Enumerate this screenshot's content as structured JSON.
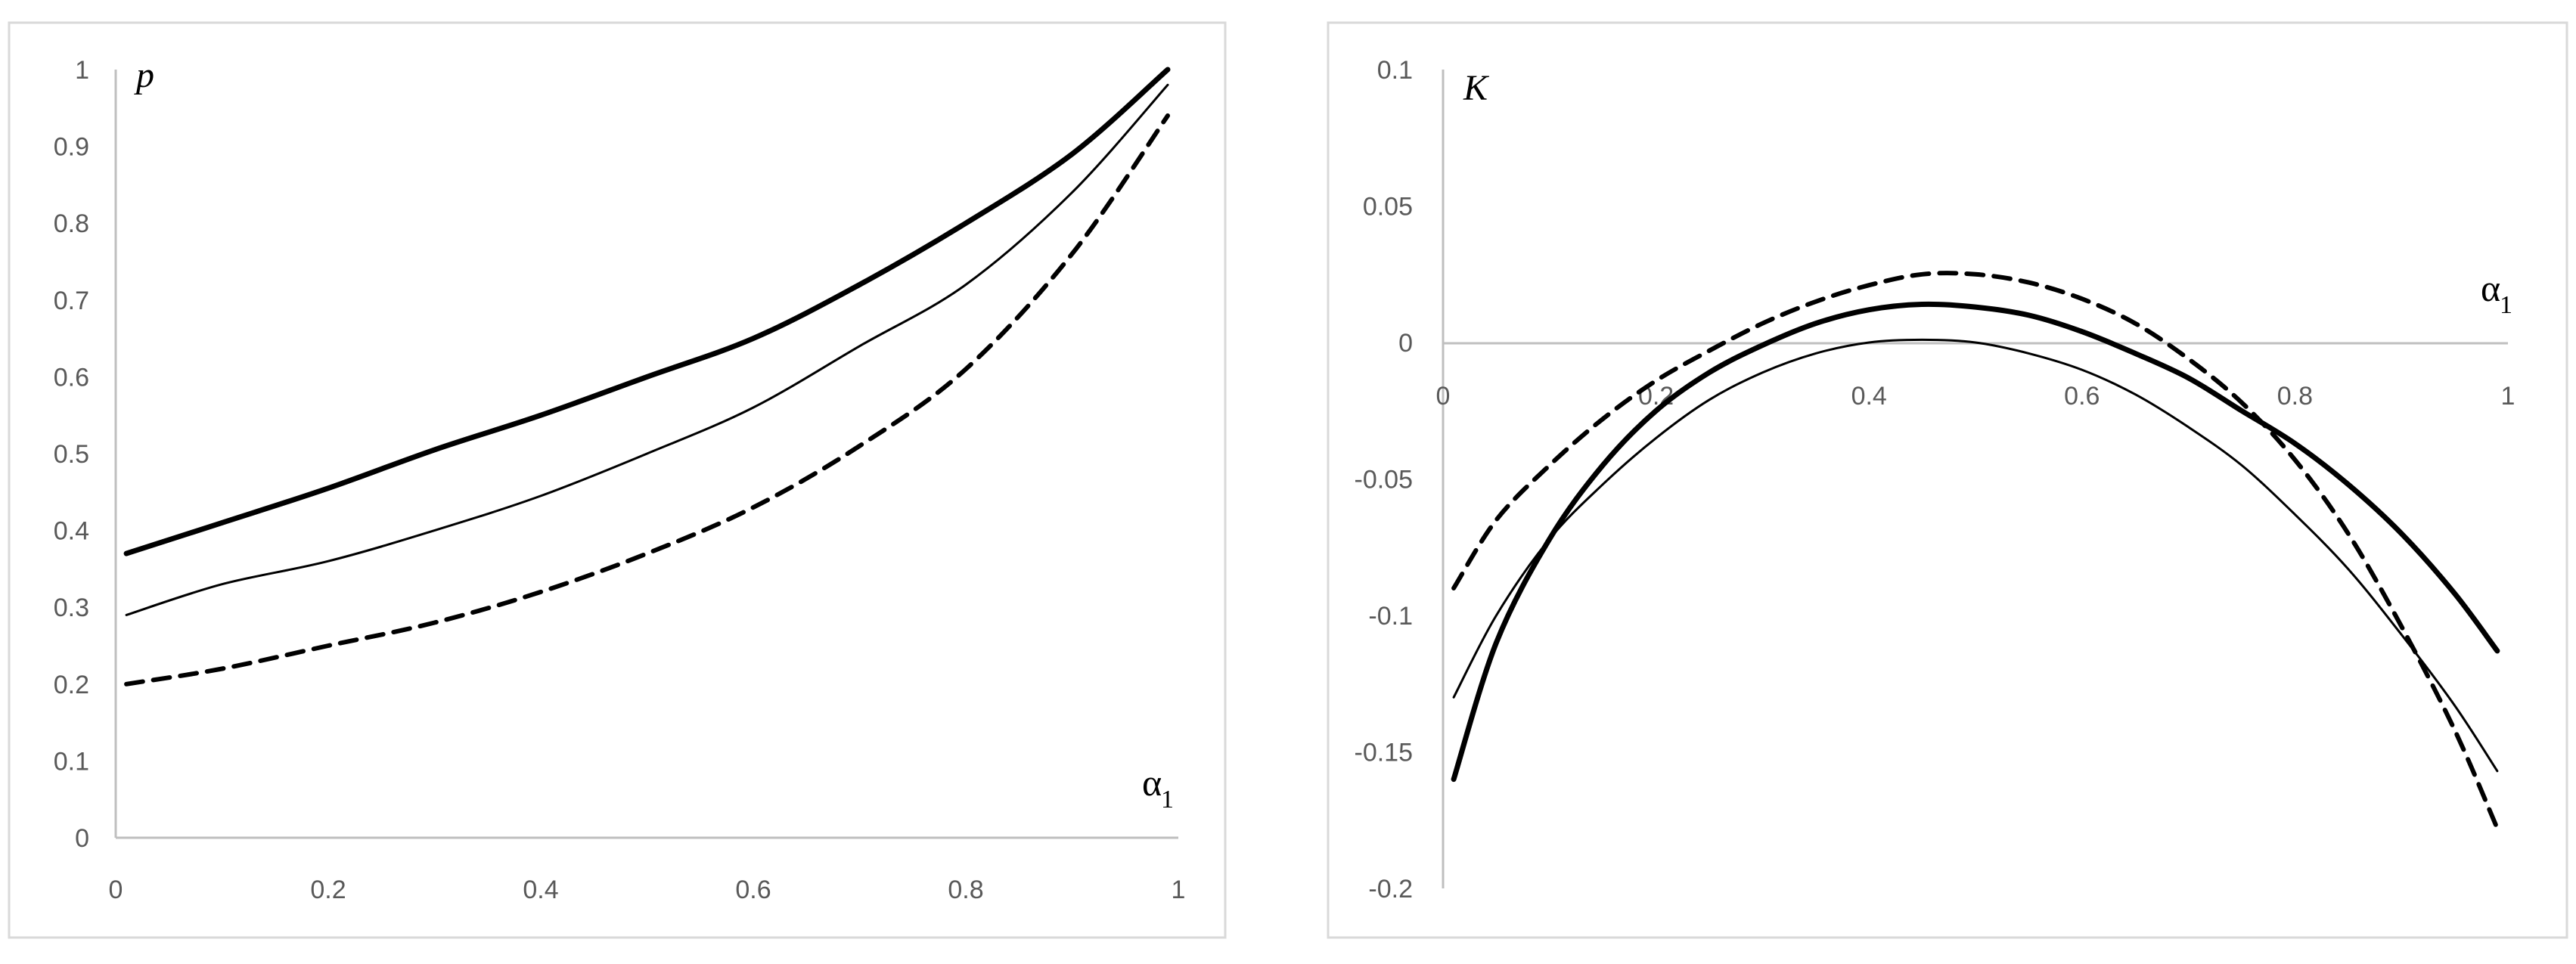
{
  "chart_data": [
    {
      "type": "line",
      "title": "",
      "ylabel": "p",
      "xlabel_main": "α",
      "xlabel_sub": "1",
      "xlim": [
        0,
        1
      ],
      "ylim": [
        0,
        1
      ],
      "xticks": [
        "0",
        "0.2",
        "0.4",
        "0.6",
        "0.8",
        "1"
      ],
      "yticks": [
        "0",
        "0.1",
        "0.2",
        "0.3",
        "0.4",
        "0.5",
        "0.6",
        "0.7",
        "0.8",
        "0.9",
        "1"
      ],
      "grid": false,
      "series": [
        {
          "style": "thick-solid",
          "x": [
            0.01,
            0.1,
            0.2,
            0.3,
            0.4,
            0.5,
            0.6,
            0.7,
            0.8,
            0.9,
            0.99
          ],
          "y": [
            0.37,
            0.41,
            0.455,
            0.505,
            0.55,
            0.6,
            0.65,
            0.72,
            0.8,
            0.89,
            1.0
          ]
        },
        {
          "style": "thin-solid",
          "x": [
            0.01,
            0.1,
            0.2,
            0.3,
            0.4,
            0.5,
            0.6,
            0.7,
            0.8,
            0.9,
            0.99
          ],
          "y": [
            0.29,
            0.33,
            0.36,
            0.4,
            0.445,
            0.5,
            0.56,
            0.64,
            0.72,
            0.84,
            0.98
          ]
        },
        {
          "style": "dashed",
          "x": [
            0.01,
            0.1,
            0.2,
            0.3,
            0.4,
            0.5,
            0.6,
            0.7,
            0.8,
            0.9,
            0.99
          ],
          "y": [
            0.2,
            0.22,
            0.25,
            0.28,
            0.32,
            0.37,
            0.43,
            0.51,
            0.61,
            0.76,
            0.94
          ]
        }
      ]
    },
    {
      "type": "line",
      "title": "",
      "ylabel": "K",
      "xlabel_main": "α",
      "xlabel_sub": "1",
      "xlim": [
        0,
        1
      ],
      "ylim": [
        -0.2,
        0.1
      ],
      "xticks": [
        "0",
        "0.2",
        "0.4",
        "0.6",
        "0.8",
        "1"
      ],
      "yticks": [
        "-0.2",
        "-0.15",
        "-0.1",
        "-0.05",
        "0",
        "0.05",
        "0.1"
      ],
      "grid": false,
      "series": [
        {
          "style": "thick-solid",
          "x": [
            0.01,
            0.05,
            0.1,
            0.15,
            0.2,
            0.25,
            0.3,
            0.35,
            0.4,
            0.45,
            0.5,
            0.55,
            0.6,
            0.65,
            0.7,
            0.75,
            0.8,
            0.85,
            0.9,
            0.95,
            0.99
          ],
          "y": [
            -0.16,
            -0.11,
            -0.072,
            -0.045,
            -0.025,
            -0.011,
            -0.001,
            0.007,
            0.012,
            0.014,
            0.013,
            0.01,
            0.004,
            -0.004,
            -0.013,
            -0.025,
            -0.037,
            -0.052,
            -0.07,
            -0.092,
            -0.113
          ]
        },
        {
          "style": "thin-solid",
          "x": [
            0.01,
            0.05,
            0.1,
            0.15,
            0.2,
            0.25,
            0.3,
            0.35,
            0.4,
            0.45,
            0.5,
            0.55,
            0.6,
            0.65,
            0.7,
            0.75,
            0.8,
            0.85,
            0.9,
            0.95,
            0.99
          ],
          "y": [
            -0.13,
            -0.1,
            -0.072,
            -0.052,
            -0.035,
            -0.021,
            -0.011,
            -0.004,
            0.0,
            0.001,
            0.0,
            -0.004,
            -0.01,
            -0.019,
            -0.031,
            -0.045,
            -0.063,
            -0.083,
            -0.107,
            -0.133,
            -0.157
          ]
        },
        {
          "style": "dashed",
          "x": [
            0.01,
            0.05,
            0.1,
            0.15,
            0.2,
            0.25,
            0.3,
            0.35,
            0.4,
            0.45,
            0.5,
            0.55,
            0.6,
            0.65,
            0.7,
            0.75,
            0.8,
            0.85,
            0.9,
            0.95,
            0.99
          ],
          "y": [
            -0.09,
            -0.065,
            -0.045,
            -0.028,
            -0.014,
            -0.003,
            0.007,
            0.015,
            0.021,
            0.025,
            0.025,
            0.022,
            0.016,
            0.007,
            -0.006,
            -0.022,
            -0.043,
            -0.07,
            -0.104,
            -0.142,
            -0.178
          ]
        }
      ]
    }
  ]
}
